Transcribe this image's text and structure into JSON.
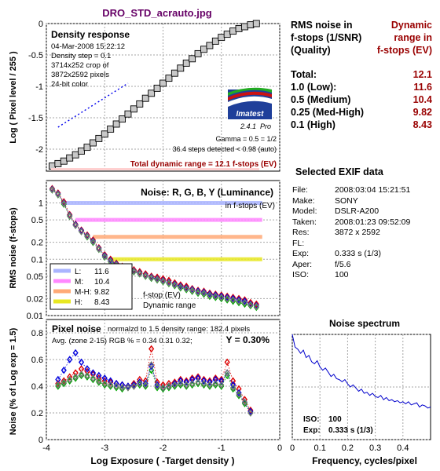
{
  "page": {
    "title": "DRO_STD_acrauto.jpg",
    "colors": {
      "title": "#660066",
      "dr": "#990000",
      "grid": "#a6a6a6"
    }
  },
  "rms_table": {
    "col1_header": [
      "RMS noise in",
      "f-stops (1/SNR)",
      "(Quality)"
    ],
    "col2_header": [
      "Dynamic",
      "range in",
      "f-stops (EV)"
    ],
    "rows": [
      {
        "label": "Total:",
        "value": "12.1"
      },
      {
        "label": "1.0   (Low):",
        "value": "11.6"
      },
      {
        "label": "0.5   (Medium)",
        "value": "10.4"
      },
      {
        "label": "0.25 (Med-High)",
        "value": "9.82"
      },
      {
        "label": "0.1   (High)",
        "value": "8.43"
      }
    ]
  },
  "exif": {
    "title": "Selected EXIF data",
    "rows": [
      {
        "label": "File:",
        "value": "2008:03:04 15:21:51"
      },
      {
        "label": "Make:",
        "value": "SONY"
      },
      {
        "label": "Model:",
        "value": "DSLR-A200"
      },
      {
        "label": "Taken:",
        "value": "2008:01:23 09:52:09"
      },
      {
        "label": "Res:",
        "value": "3872 x 2592"
      },
      {
        "label": "FL:",
        "value": ""
      },
      {
        "label": "Exp:",
        "value": "0.333 s  (1/3)"
      },
      {
        "label": "Aper:",
        "value": "f/5.6"
      },
      {
        "label": "ISO:",
        "value": "100"
      }
    ]
  },
  "density_panel": {
    "heading": "Density response",
    "info": [
      "04-Mar-2008 15:22:12",
      "Density step = 0.1",
      "3714x252 crop of",
      "3872x2592 pixels",
      "24-bit color"
    ],
    "gamma": "Gamma = 0.5 = 1/2",
    "steps": "36.4 steps detected < 0.98 (auto)",
    "total_dr": "Total dynamic range = 12.1 f-stops (EV)",
    "ylabel": "Log ( Pixel level / 255 )",
    "logo": "Imatest",
    "version": "2.4.1",
    "version_suffix": "Pro"
  },
  "noise_panel": {
    "heading": "Noise: R, G, B, Y (Luminance)",
    "subheading": "in f-stops (EV)",
    "ylabel": "RMS noise (f-stops)",
    "legend": [
      {
        "key": "L:",
        "value": "11.6",
        "color": "#aab4ff"
      },
      {
        "key": "M:",
        "value": "10.4",
        "color": "#ff88ff"
      },
      {
        "key": "M-H:",
        "value": "9.82",
        "color": "#ffaa77"
      },
      {
        "key": "H:",
        "value": "8.43",
        "color": "#e8e822"
      }
    ],
    "note1": "f-stop (EV)",
    "note2": "Dynamic range"
  },
  "pixel_panel": {
    "heading": "Pixel noise",
    "subheading": "normalzd to 1.5 density range: 182.4 pixels",
    "avg": "Avg. (zone 2-15) RGB % = 0.34  0.31  0.32;",
    "y": "Y = 0.30%",
    "ylabel": "Noise (% of Log exp = 1.5)",
    "xlabel": "Log Exposure ( -Target density )"
  },
  "spectrum_panel": {
    "title": "Noise spectrum",
    "xlabel": "Frequency, cycles/pixel",
    "iso_label": "ISO:",
    "iso_value": "100",
    "exp_label": "Exp:",
    "exp_value": "0.333 s  (1/3)"
  },
  "chart_data": [
    {
      "type": "line",
      "title": "Density response",
      "ylabel": "Log ( Pixel level / 255 )",
      "xlim": [
        -4,
        0
      ],
      "ylim": [
        -2.35,
        0
      ],
      "xticks": [
        -4,
        -3,
        -2,
        -1,
        0
      ],
      "yticks": [
        0,
        -0.5,
        -1,
        -1.5,
        -2
      ],
      "ytick_labels": [
        "0",
        "-0.5",
        "-1",
        "-1.5",
        "-2"
      ],
      "grid": true,
      "series": [
        {
          "values_x": [
            -3.9,
            -3.8,
            -3.7,
            -3.6,
            -3.5,
            -3.4,
            -3.3,
            -3.2,
            -3.1,
            -3.0,
            -2.9,
            -2.8,
            -2.7,
            -2.6,
            -2.5,
            -2.4,
            -2.3,
            -2.2,
            -2.1,
            -2.0,
            -1.9,
            -1.8,
            -1.7,
            -1.6,
            -1.5,
            -1.4,
            -1.3,
            -1.2,
            -1.1,
            -1.0,
            -0.9,
            -0.8,
            -0.7,
            -0.6,
            -0.5,
            -0.4
          ],
          "values_y": [
            -2.27,
            -2.23,
            -2.19,
            -2.14,
            -2.09,
            -2.03,
            -1.97,
            -1.9,
            -1.83,
            -1.76,
            -1.68,
            -1.6,
            -1.52,
            -1.44,
            -1.36,
            -1.28,
            -1.19,
            -1.11,
            -1.03,
            -0.95,
            -0.87,
            -0.79,
            -0.71,
            -0.63,
            -0.56,
            -0.48,
            -0.41,
            -0.35,
            -0.28,
            -0.22,
            -0.17,
            -0.12,
            -0.08,
            -0.05,
            -0.02,
            0.0
          ]
        },
        {
          "name": "ideal_gamma_line",
          "values_x": [
            -3.8,
            -2.6
          ],
          "values_y": [
            -1.65,
            -0.95
          ]
        }
      ]
    },
    {
      "type": "scatter",
      "title": "Noise: R, G, B, Y (Luminance)",
      "ylabel": "RMS noise (f-stops)",
      "yscale": "log",
      "xlim": [
        -4,
        0
      ],
      "ylim": [
        0.01,
        2.5
      ],
      "ytick_labels": [
        "1",
        "0.5",
        "0.2",
        "0.1",
        "0.05",
        "0.02",
        "0.01"
      ],
      "grid": true,
      "thresholds": [
        1.0,
        0.5,
        0.25,
        0.1
      ],
      "x": [
        -3.9,
        -3.8,
        -3.7,
        -3.6,
        -3.5,
        -3.4,
        -3.3,
        -3.2,
        -3.1,
        -3.0,
        -2.9,
        -2.8,
        -2.7,
        -2.6,
        -2.5,
        -2.4,
        -2.3,
        -2.2,
        -2.1,
        -2.0,
        -1.9,
        -1.8,
        -1.7,
        -1.6,
        -1.5,
        -1.4,
        -1.3,
        -1.2,
        -1.1,
        -1.0,
        -0.9,
        -0.8,
        -0.7,
        -0.6,
        -0.5,
        -0.4
      ],
      "series": [
        {
          "name": "R",
          "color": "#dd0000",
          "values": [
            1.8,
            1.5,
            1.05,
            0.62,
            0.42,
            0.33,
            0.27,
            0.22,
            0.16,
            0.12,
            0.1,
            0.085,
            0.075,
            0.07,
            0.065,
            0.06,
            0.055,
            0.05,
            0.048,
            0.045,
            0.042,
            0.038,
            0.035,
            0.033,
            0.03,
            0.028,
            0.027,
            0.025,
            0.024,
            0.023,
            0.022,
            0.021,
            0.02,
            0.019,
            0.017,
            0.016
          ]
        },
        {
          "name": "G",
          "color": "#00aa00",
          "values": [
            1.7,
            1.4,
            0.95,
            0.58,
            0.4,
            0.31,
            0.25,
            0.2,
            0.15,
            0.11,
            0.09,
            0.08,
            0.07,
            0.065,
            0.06,
            0.055,
            0.05,
            0.046,
            0.043,
            0.04,
            0.037,
            0.034,
            0.031,
            0.029,
            0.027,
            0.025,
            0.024,
            0.022,
            0.021,
            0.02,
            0.019,
            0.018,
            0.017,
            0.016,
            0.015,
            0.014
          ]
        },
        {
          "name": "B",
          "color": "#0000dd",
          "values": [
            1.75,
            1.45,
            1.0,
            0.6,
            0.41,
            0.32,
            0.26,
            0.21,
            0.155,
            0.115,
            0.095,
            0.082,
            0.072,
            0.067,
            0.062,
            0.057,
            0.052,
            0.048,
            0.045,
            0.042,
            0.039,
            0.036,
            0.033,
            0.031,
            0.029,
            0.027,
            0.026,
            0.024,
            0.023,
            0.022,
            0.021,
            0.02,
            0.019,
            0.018,
            0.016,
            0.015
          ]
        },
        {
          "name": "Y",
          "color": "#777777",
          "values": [
            1.72,
            1.42,
            0.98,
            0.59,
            0.4,
            0.31,
            0.255,
            0.205,
            0.152,
            0.112,
            0.092,
            0.08,
            0.071,
            0.066,
            0.061,
            0.056,
            0.051,
            0.047,
            0.044,
            0.041,
            0.038,
            0.035,
            0.032,
            0.03,
            0.028,
            0.026,
            0.025,
            0.023,
            0.022,
            0.021,
            0.02,
            0.019,
            0.018,
            0.017,
            0.0155,
            0.0145
          ]
        }
      ]
    },
    {
      "type": "line",
      "title": "Pixel noise",
      "ylabel": "Noise (% of Log exp = 1.5)",
      "xlabel": "Log Exposure ( -Target density )",
      "xlim": [
        -4,
        0
      ],
      "ylim": [
        0,
        0.9
      ],
      "xticks": [
        -4,
        -3,
        -2,
        -1,
        0
      ],
      "yticks": [
        0,
        0.2,
        0.4,
        0.6,
        0.8
      ],
      "ytick_labels": [
        "0",
        "0.2",
        "0.4",
        "0.6",
        "0.8"
      ],
      "grid": true,
      "x": [
        -3.8,
        -3.7,
        -3.6,
        -3.5,
        -3.4,
        -3.3,
        -3.2,
        -3.1,
        -3.0,
        -2.9,
        -2.8,
        -2.7,
        -2.6,
        -2.5,
        -2.4,
        -2.3,
        -2.2,
        -2.1,
        -2.0,
        -1.9,
        -1.8,
        -1.7,
        -1.6,
        -1.5,
        -1.4,
        -1.3,
        -1.2,
        -1.1,
        -1.0,
        -0.9,
        -0.8,
        -0.7,
        -0.6,
        -0.5
      ],
      "series": [
        {
          "name": "R",
          "color": "#dd0000",
          "values": [
            0.42,
            0.44,
            0.47,
            0.5,
            0.53,
            0.51,
            0.49,
            0.46,
            0.44,
            0.43,
            0.42,
            0.41,
            0.4,
            0.42,
            0.45,
            0.44,
            0.68,
            0.43,
            0.41,
            0.42,
            0.43,
            0.45,
            0.44,
            0.46,
            0.47,
            0.45,
            0.44,
            0.46,
            0.45,
            0.58,
            0.44,
            0.38,
            0.3,
            0.22
          ]
        },
        {
          "name": "G",
          "color": "#00aa00",
          "values": [
            0.4,
            0.42,
            0.44,
            0.46,
            0.48,
            0.47,
            0.45,
            0.43,
            0.41,
            0.4,
            0.39,
            0.38,
            0.39,
            0.4,
            0.41,
            0.4,
            0.52,
            0.39,
            0.38,
            0.39,
            0.4,
            0.41,
            0.4,
            0.41,
            0.42,
            0.41,
            0.4,
            0.41,
            0.4,
            0.48,
            0.38,
            0.33,
            0.27,
            0.2
          ]
        },
        {
          "name": "B",
          "color": "#0000dd",
          "values": [
            0.45,
            0.52,
            0.6,
            0.65,
            0.58,
            0.53,
            0.5,
            0.48,
            0.46,
            0.44,
            0.42,
            0.41,
            0.4,
            0.41,
            0.43,
            0.42,
            0.55,
            0.41,
            0.39,
            0.4,
            0.42,
            0.44,
            0.43,
            0.45,
            0.46,
            0.44,
            0.43,
            0.45,
            0.44,
            0.5,
            0.41,
            0.35,
            0.28,
            0.21
          ]
        },
        {
          "name": "Y",
          "color": "#777777",
          "values": [
            0.41,
            0.43,
            0.45,
            0.47,
            0.49,
            0.48,
            0.46,
            0.44,
            0.42,
            0.41,
            0.4,
            0.39,
            0.39,
            0.4,
            0.42,
            0.41,
            0.56,
            0.4,
            0.39,
            0.4,
            0.41,
            0.42,
            0.41,
            0.42,
            0.43,
            0.42,
            0.41,
            0.42,
            0.41,
            0.5,
            0.39,
            0.34,
            0.28,
            0.2
          ]
        }
      ]
    },
    {
      "type": "line",
      "title": "Noise spectrum",
      "xlabel": "Frequency, cycles/pixel",
      "xlim": [
        0,
        0.5
      ],
      "ylim": [
        0,
        1
      ],
      "xticks": [
        0,
        0.1,
        0.2,
        0.3,
        0.4
      ],
      "yticks": [
        0,
        0.5,
        1
      ],
      "grid": true,
      "series": [
        {
          "name": "spectrum",
          "color": "#0000cc",
          "x": [
            0,
            0.01,
            0.02,
            0.03,
            0.04,
            0.05,
            0.06,
            0.07,
            0.08,
            0.09,
            0.1,
            0.11,
            0.12,
            0.13,
            0.14,
            0.15,
            0.16,
            0.17,
            0.18,
            0.19,
            0.2,
            0.21,
            0.22,
            0.23,
            0.24,
            0.25,
            0.26,
            0.27,
            0.28,
            0.29,
            0.3,
            0.31,
            0.32,
            0.33,
            0.34,
            0.35,
            0.36,
            0.37,
            0.38,
            0.39,
            0.4,
            0.41,
            0.42,
            0.43,
            0.44,
            0.45,
            0.46,
            0.47,
            0.48,
            0.49,
            0.5
          ],
          "values": [
            1.0,
            0.88,
            0.86,
            0.82,
            0.85,
            0.78,
            0.8,
            0.74,
            0.72,
            0.75,
            0.69,
            0.66,
            0.68,
            0.64,
            0.6,
            0.62,
            0.58,
            0.57,
            0.55,
            0.57,
            0.53,
            0.5,
            0.52,
            0.49,
            0.46,
            0.48,
            0.44,
            0.45,
            0.42,
            0.44,
            0.41,
            0.4,
            0.42,
            0.38,
            0.4,
            0.37,
            0.38,
            0.36,
            0.37,
            0.35,
            0.36,
            0.34,
            0.36,
            0.33,
            0.34,
            0.35,
            0.31,
            0.33,
            0.32,
            0.3,
            0.31
          ]
        }
      ]
    }
  ]
}
